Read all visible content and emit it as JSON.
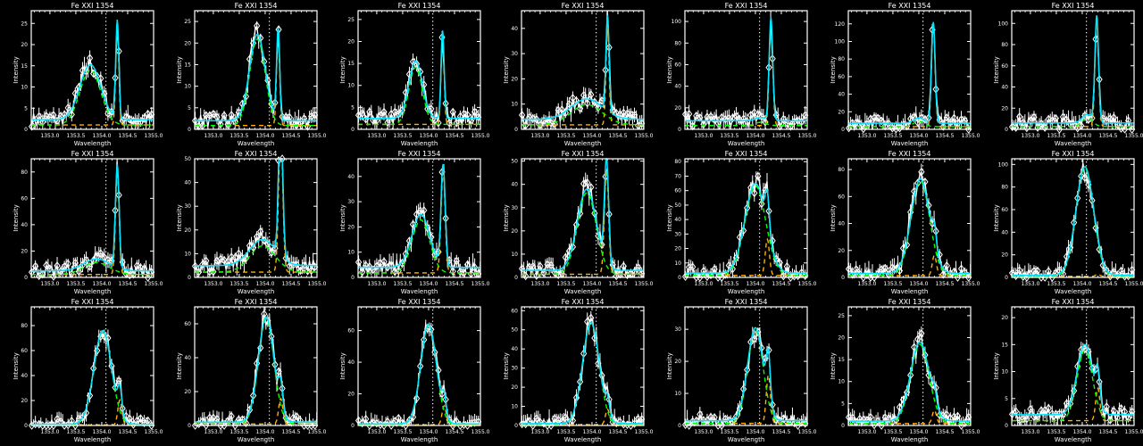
{
  "chart_data": {
    "type": "line",
    "layout": "grid of 7 columns x 3 rows",
    "title": "Fe XXI 1354",
    "xlabel": "Wavelength",
    "ylabel": "Intensity",
    "xlim": [
      1352.64,
      1355.0
    ],
    "x_ticks": [
      "1353.0",
      "1353.5",
      "1354.0",
      "1354.5",
      "1355.0"
    ],
    "reference_line_x": 1354.08,
    "colors": {
      "background": "#000000",
      "data": "#ffffff",
      "total_fit": "#00e5ff",
      "broad_component": "#00ff00",
      "narrow_component": "#ffb000",
      "reference": "#ffffff"
    },
    "panels": [
      {
        "ylim": [
          0,
          28
        ],
        "yticks": [
          0,
          5,
          10,
          15,
          20,
          25
        ],
        "bg": 2.3,
        "broad": [
          1353.78,
          13,
          0.2
        ],
        "narrow": [
          1354.3,
          23,
          0.03
        ]
      },
      {
        "ylim": [
          0,
          27.5
        ],
        "yticks": [
          0,
          5,
          10,
          15,
          20,
          25
        ],
        "bg": 2,
        "broad": [
          1353.85,
          20,
          0.15
        ],
        "narrow": [
          1354.25,
          21,
          0.03
        ]
      },
      {
        "ylim": [
          0,
          27
        ],
        "yticks": [
          0,
          5,
          10,
          15,
          20,
          25
        ],
        "bg": 2.5,
        "broad": [
          1353.75,
          13,
          0.13
        ],
        "narrow": [
          1354.27,
          20,
          0.03
        ]
      },
      {
        "ylim": [
          0,
          47
        ],
        "yticks": [
          0,
          10,
          20,
          30,
          40
        ],
        "bg": 4,
        "broad": [
          1353.9,
          8,
          0.3
        ],
        "narrow": [
          1354.3,
          38,
          0.03
        ]
      },
      {
        "ylim": [
          0,
          110
        ],
        "yticks": [
          0,
          20,
          40,
          60,
          80,
          100
        ],
        "bg": 8,
        "broad": [
          1354.1,
          3,
          0.1
        ],
        "narrow": [
          1354.3,
          95,
          0.035
        ]
      },
      {
        "ylim": [
          0,
          135
        ],
        "yticks": [
          0,
          20,
          40,
          60,
          80,
          100,
          120
        ],
        "bg": 7,
        "broad": [
          1354.0,
          6,
          0.1
        ],
        "narrow": [
          1354.28,
          115,
          0.035
        ]
      },
      {
        "ylim": [
          0,
          112
        ],
        "yticks": [
          0,
          20,
          40,
          60,
          80,
          100
        ],
        "bg": 6,
        "broad": [
          1354.1,
          8,
          0.1
        ],
        "narrow": [
          1354.28,
          100,
          0.035
        ]
      },
      {
        "ylim": [
          0,
          90
        ],
        "yticks": [
          0,
          20,
          40,
          60,
          80
        ],
        "bg": 5,
        "broad": [
          1353.9,
          9,
          0.25
        ],
        "narrow": [
          1354.3,
          78,
          0.035
        ]
      },
      {
        "ylim": [
          0,
          50
        ],
        "yticks": [
          0,
          10,
          20,
          30,
          40,
          50
        ],
        "bg": 5,
        "broad": [
          1353.95,
          11,
          0.25
        ],
        "narrow": [
          1354.3,
          60,
          0.04
        ]
      },
      {
        "ylim": [
          0,
          47
        ],
        "yticks": [
          0,
          10,
          20,
          30,
          40
        ],
        "bg": 4,
        "broad": [
          1353.85,
          21,
          0.17
        ],
        "narrow": [
          1354.28,
          40,
          0.04
        ]
      },
      {
        "ylim": [
          0,
          51
        ],
        "yticks": [
          0,
          10,
          20,
          30,
          40,
          50
        ],
        "bg": 3,
        "broad": [
          1353.9,
          35,
          0.18
        ],
        "narrow": [
          1354.28,
          45,
          0.04
        ]
      },
      {
        "ylim": [
          0,
          82
        ],
        "yticks": [
          0,
          10,
          20,
          30,
          40,
          50,
          60,
          70,
          80
        ],
        "bg": 3,
        "broad": [
          1354.0,
          62,
          0.2
        ],
        "narrow": [
          1354.23,
          25,
          0.04
        ]
      },
      {
        "ylim": [
          0,
          88
        ],
        "yticks": [
          0,
          20,
          40,
          60,
          80
        ],
        "bg": 3,
        "broad": [
          1354.03,
          70,
          0.18
        ],
        "narrow": [
          1354.3,
          15,
          0.04
        ]
      },
      {
        "ylim": [
          0,
          105
        ],
        "yticks": [
          0,
          20,
          40,
          60,
          80,
          100
        ],
        "bg": 2,
        "broad": [
          1354.05,
          96,
          0.17
        ],
        "narrow": [
          1354.3,
          2,
          0.04
        ]
      },
      {
        "ylim": [
          0,
          95
        ],
        "yticks": [
          0,
          20,
          40,
          60,
          80
        ],
        "bg": 1,
        "broad": [
          1354.02,
          75,
          0.17
        ],
        "narrow": [
          1354.35,
          20,
          0.04
        ]
      },
      {
        "ylim": [
          0,
          70
        ],
        "yticks": [
          0,
          20,
          40,
          60
        ],
        "bg": 2,
        "broad": [
          1354.02,
          62,
          0.15
        ],
        "narrow": [
          1354.3,
          15,
          0.04
        ]
      },
      {
        "ylim": [
          0,
          75
        ],
        "yticks": [
          0,
          20,
          40,
          60
        ],
        "bg": 1,
        "broad": [
          1354.0,
          63,
          0.15
        ],
        "narrow": [
          1354.3,
          12,
          0.04
        ]
      },
      {
        "ylim": [
          0,
          62
        ],
        "yticks": [
          0,
          10,
          20,
          30,
          40,
          50,
          60
        ],
        "bg": 1,
        "broad": [
          1353.98,
          53,
          0.16
        ],
        "narrow": [
          1354.3,
          8,
          0.04
        ]
      },
      {
        "ylim": [
          0,
          37
        ],
        "yticks": [
          0,
          10,
          20,
          30
        ],
        "bg": 1.5,
        "broad": [
          1354.0,
          29,
          0.15
        ],
        "narrow": [
          1354.25,
          15,
          0.04
        ]
      },
      {
        "ylim": [
          0,
          27
        ],
        "yticks": [
          0,
          5,
          10,
          15,
          20,
          25
        ],
        "bg": 1,
        "broad": [
          1354.02,
          18,
          0.18
        ],
        "narrow": [
          1354.3,
          3,
          0.04
        ]
      },
      {
        "ylim": [
          0,
          22
        ],
        "yticks": [
          0,
          5,
          10,
          15,
          20
        ],
        "bg": 2,
        "broad": [
          1354.05,
          13,
          0.15
        ],
        "narrow": [
          1354.3,
          6,
          0.04
        ]
      }
    ]
  }
}
